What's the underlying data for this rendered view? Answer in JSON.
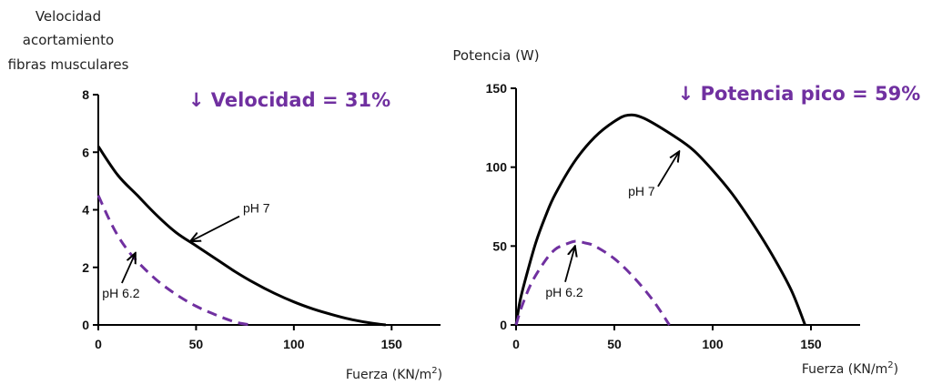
{
  "chart_data": [
    {
      "type": "line",
      "ylabel_lines": [
        "Velocidad",
        "acortamiento",
        "fibras musculares"
      ],
      "xlabel": "Fuerza (KN/m",
      "xlabel_sup": "2",
      "xlabel_close": ")",
      "headline": "↓ Velocidad = 31%",
      "headline_color": "#7030a0",
      "xlim": [
        0,
        175
      ],
      "ylim": [
        0,
        8
      ],
      "xticks": [
        0,
        50,
        100,
        150
      ],
      "yticks": [
        0,
        2,
        4,
        6,
        8
      ],
      "series": [
        {
          "name": "pH 7",
          "style": "solid",
          "color": "#000000",
          "x": [
            0,
            10,
            20,
            30,
            40,
            50,
            60,
            70,
            80,
            90,
            100,
            110,
            120,
            130,
            140,
            147
          ],
          "y": [
            6.2,
            5.2,
            4.5,
            3.8,
            3.2,
            2.75,
            2.3,
            1.85,
            1.45,
            1.1,
            0.8,
            0.55,
            0.35,
            0.18,
            0.06,
            0
          ]
        },
        {
          "name": "pH 6.2",
          "style": "dashed",
          "color": "#7030a0",
          "x": [
            0,
            5,
            10,
            15,
            20,
            30,
            40,
            50,
            60,
            70,
            78
          ],
          "y": [
            4.5,
            3.75,
            3.1,
            2.6,
            2.2,
            1.55,
            1.05,
            0.65,
            0.35,
            0.1,
            0
          ]
        }
      ],
      "annotations": [
        {
          "text": "pH 7",
          "x": 74,
          "y": 3.9,
          "arrow_to": [
            47,
            2.9
          ]
        },
        {
          "text": "pH 6.2",
          "x": 2,
          "y": 0.95,
          "arrow_to": [
            19,
            2.5
          ]
        }
      ]
    },
    {
      "type": "line",
      "ylabel_lines": [
        "Potencia (W)"
      ],
      "xlabel": "Fuerza (KN/m",
      "xlabel_sup": "2",
      "xlabel_close": ")",
      "headline": "↓ Potencia pico = 59%",
      "headline_color": "#7030a0",
      "xlim": [
        0,
        175
      ],
      "ylim": [
        0,
        150
      ],
      "xticks": [
        0,
        50,
        100,
        150
      ],
      "yticks": [
        0,
        50,
        100,
        150
      ],
      "series": [
        {
          "name": "pH 7",
          "style": "solid",
          "color": "#000000",
          "x": [
            0,
            2,
            5,
            10,
            15,
            20,
            30,
            40,
            50,
            57,
            65,
            80,
            90,
            100,
            110,
            120,
            130,
            140,
            147
          ],
          "y": [
            0,
            15,
            30,
            52,
            69,
            83,
            104,
            119,
            129,
            133,
            131,
            120,
            111,
            98,
            83,
            65,
            45,
            22,
            0
          ]
        },
        {
          "name": "pH 6.2",
          "style": "dashed",
          "color": "#7030a0",
          "x": [
            0,
            3,
            8,
            15,
            20,
            25,
            30,
            35,
            40,
            50,
            60,
            70,
            78
          ],
          "y": [
            0,
            12,
            27,
            41,
            48,
            51,
            53,
            52,
            50,
            42,
            30,
            15,
            0
          ]
        }
      ],
      "annotations": [
        {
          "text": "pH 7",
          "x": 57,
          "y": 82,
          "arrow_to": [
            83,
            110
          ]
        },
        {
          "text": "pH 6.2",
          "x": 15,
          "y": 18,
          "arrow_to": [
            30,
            50
          ]
        }
      ]
    }
  ]
}
